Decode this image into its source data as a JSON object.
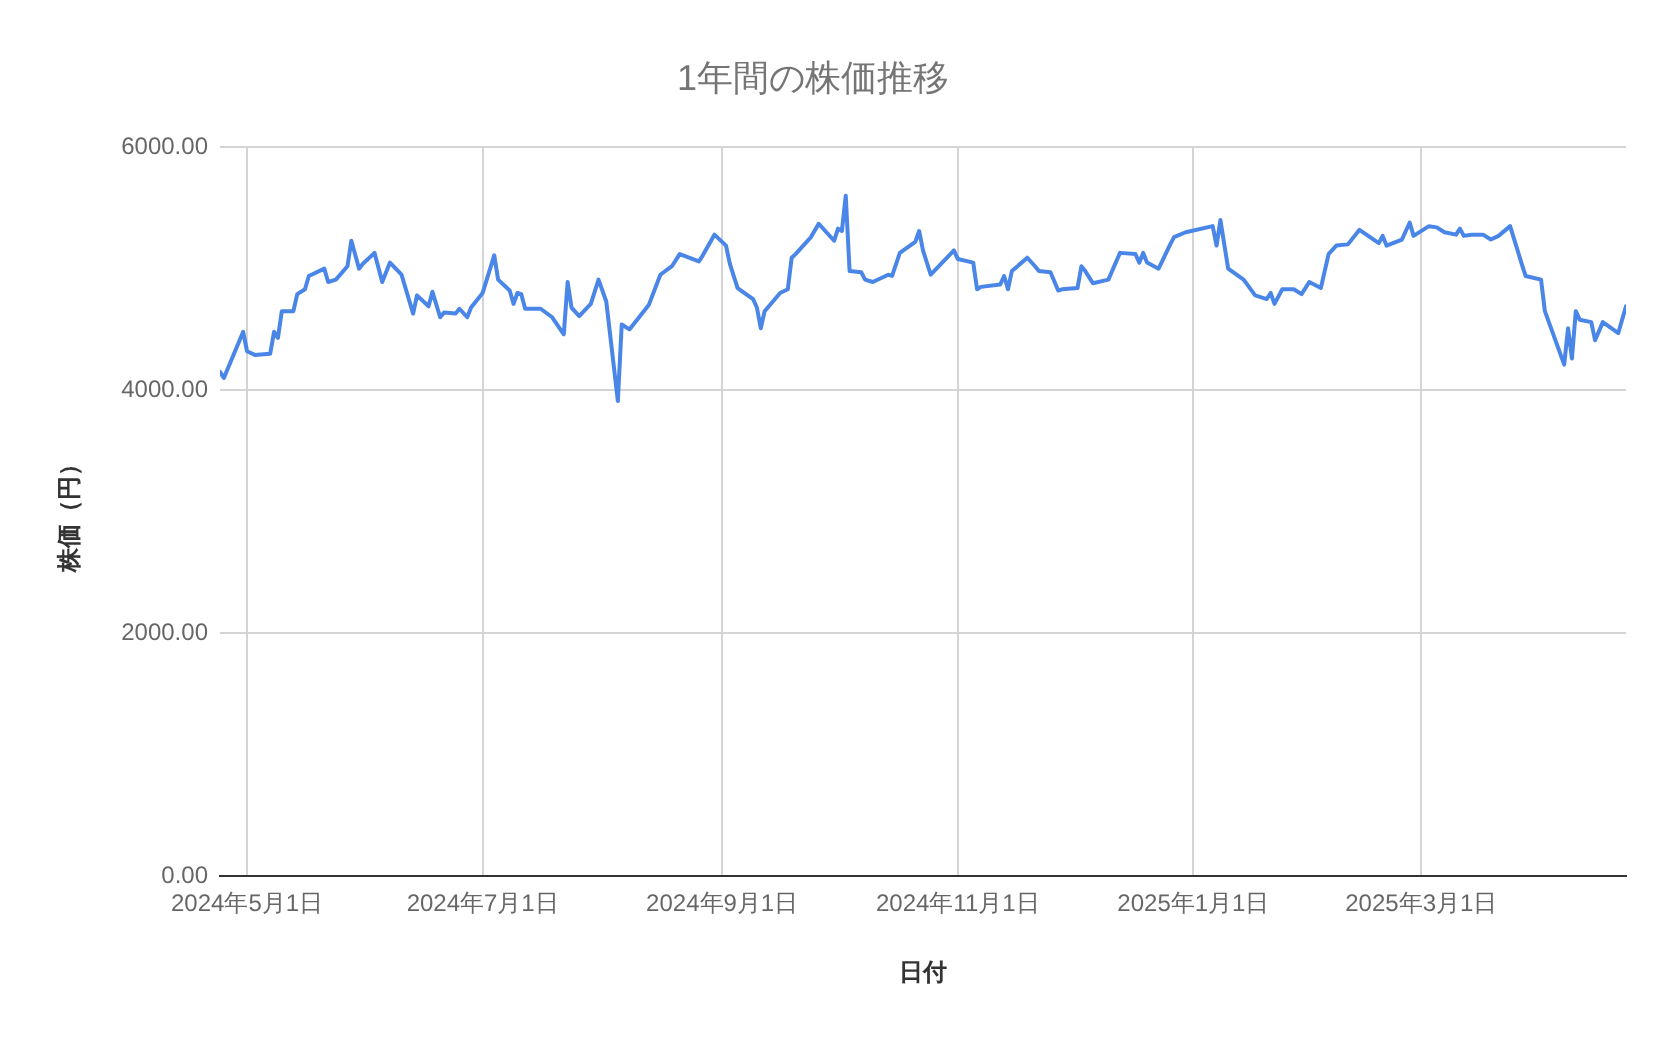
{
  "chart_data": {
    "type": "line",
    "title": "1年間の株価推移",
    "xlabel": "日付",
    "ylabel": "株価（円）",
    "x": [
      "2024-04-24",
      "2024-04-25",
      "2024-04-30",
      "2024-05-01",
      "2024-05-03",
      "2024-05-07",
      "2024-05-08",
      "2024-05-09",
      "2024-05-10",
      "2024-05-13",
      "2024-05-14",
      "2024-05-16",
      "2024-05-17",
      "2024-05-21",
      "2024-05-22",
      "2024-05-24",
      "2024-05-27",
      "2024-05-28",
      "2024-05-30",
      "2024-05-31",
      "2024-06-03",
      "2024-06-05",
      "2024-06-07",
      "2024-06-10",
      "2024-06-13",
      "2024-06-14",
      "2024-06-17",
      "2024-06-18",
      "2024-06-20",
      "2024-06-21",
      "2024-06-24",
      "2024-06-25",
      "2024-06-27",
      "2024-06-28",
      "2024-07-01",
      "2024-07-04",
      "2024-07-05",
      "2024-07-08",
      "2024-07-09",
      "2024-07-10",
      "2024-07-11",
      "2024-07-12",
      "2024-07-16",
      "2024-07-19",
      "2024-07-22",
      "2024-07-23",
      "2024-07-24",
      "2024-07-26",
      "2024-07-29",
      "2024-07-31",
      "2024-08-02",
      "2024-08-05",
      "2024-08-06",
      "2024-08-08",
      "2024-08-13",
      "2024-08-16",
      "2024-08-19",
      "2024-08-21",
      "2024-08-26",
      "2024-08-27",
      "2024-08-30",
      "2024-09-02",
      "2024-09-03",
      "2024-09-05",
      "2024-09-09",
      "2024-09-10",
      "2024-09-11",
      "2024-09-12",
      "2024-09-16",
      "2024-09-18",
      "2024-09-19",
      "2024-09-20",
      "2024-09-24",
      "2024-09-26",
      "2024-09-30",
      "2024-10-01",
      "2024-10-02",
      "2024-10-03",
      "2024-10-04",
      "2024-10-07",
      "2024-10-08",
      "2024-10-10",
      "2024-10-14",
      "2024-10-15",
      "2024-10-17",
      "2024-10-21",
      "2024-10-22",
      "2024-10-23",
      "2024-10-25",
      "2024-10-31",
      "2024-11-01",
      "2024-11-05",
      "2024-11-06",
      "2024-11-07",
      "2024-11-12",
      "2024-11-13",
      "2024-11-14",
      "2024-11-15",
      "2024-11-19",
      "2024-11-21",
      "2024-11-22",
      "2024-11-25",
      "2024-11-27",
      "2024-11-28",
      "2024-12-02",
      "2024-12-03",
      "2024-12-04",
      "2024-12-06",
      "2024-12-10",
      "2024-12-13",
      "2024-12-17",
      "2024-12-18",
      "2024-12-19",
      "2024-12-20",
      "2024-12-23",
      "2024-12-26",
      "2024-12-27",
      "2024-12-30",
      "2025-01-06",
      "2025-01-07",
      "2025-01-08",
      "2025-01-10",
      "2025-01-14",
      "2025-01-17",
      "2025-01-20",
      "2025-01-21",
      "2025-01-22",
      "2025-01-24",
      "2025-01-27",
      "2025-01-29",
      "2025-01-31",
      "2025-02-03",
      "2025-02-05",
      "2025-02-07",
      "2025-02-10",
      "2025-02-13",
      "2025-02-18",
      "2025-02-19",
      "2025-02-20",
      "2025-02-24",
      "2025-02-26",
      "2025-02-27",
      "2025-03-03",
      "2025-03-05",
      "2025-03-07",
      "2025-03-10",
      "2025-03-11",
      "2025-03-12",
      "2025-03-14",
      "2025-03-17",
      "2025-03-19",
      "2025-03-21",
      "2025-03-24",
      "2025-03-27",
      "2025-03-28",
      "2025-04-01",
      "2025-04-02",
      "2025-04-07",
      "2025-04-08",
      "2025-04-09",
      "2025-04-10",
      "2025-04-11",
      "2025-04-14",
      "2025-04-15",
      "2025-04-17",
      "2025-04-21",
      "2025-04-23"
    ],
    "values": [
      4150,
      4100,
      4480,
      4320,
      4290,
      4300,
      4480,
      4430,
      4650,
      4650,
      4790,
      4830,
      4940,
      5000,
      4890,
      4910,
      5020,
      5230,
      5000,
      5040,
      5130,
      4890,
      5050,
      4950,
      4630,
      4780,
      4690,
      4810,
      4600,
      4640,
      4630,
      4670,
      4600,
      4680,
      4800,
      5110,
      4910,
      4820,
      4710,
      4800,
      4790,
      4670,
      4670,
      4600,
      4460,
      4890,
      4680,
      4610,
      4710,
      4910,
      4730,
      3910,
      4540,
      4500,
      4700,
      4950,
      5020,
      5120,
      5060,
      5110,
      5280,
      5190,
      5040,
      4840,
      4750,
      4680,
      4510,
      4650,
      4800,
      4830,
      5090,
      5120,
      5260,
      5370,
      5230,
      5330,
      5310,
      5600,
      4980,
      4970,
      4910,
      4890,
      4950,
      4940,
      5130,
      5220,
      5310,
      5150,
      4950,
      5150,
      5080,
      5050,
      4830,
      4850,
      4870,
      4940,
      4830,
      4980,
      5090,
      5020,
      4980,
      4970,
      4820,
      4830,
      4840,
      5020,
      4980,
      4880,
      4910,
      5130,
      5120,
      5050,
      5130,
      5050,
      5000,
      5200,
      5260,
      5300,
      5350,
      5190,
      5400,
      5000,
      4910,
      4780,
      4750,
      4800,
      4710,
      4830,
      4830,
      4790,
      4890,
      4840,
      5120,
      5190,
      5200,
      5320,
      5210,
      5270,
      5190,
      5240,
      5380,
      5270,
      5350,
      5340,
      5300,
      5280,
      5330,
      5270,
      5280,
      5280,
      5240,
      5270,
      5350,
      5040,
      4940,
      4910,
      4650,
      4210,
      4510,
      4260,
      4650,
      4580,
      4560,
      4410,
      4560,
      4470,
      4690
    ],
    "color": "#4a86e8",
    "marker": "none",
    "line_style": "solid",
    "xlim": [
      "2024-04-24",
      "2025-04-23"
    ],
    "xticks": [
      {
        "value": "2024-05-01",
        "label": "2024年5月1日"
      },
      {
        "value": "2024-07-01",
        "label": "2024年7月1日"
      },
      {
        "value": "2024-09-01",
        "label": "2024年9月1日"
      },
      {
        "value": "2024-11-01",
        "label": "2024年11月1日"
      },
      {
        "value": "2025-01-01",
        "label": "2025年1月1日"
      },
      {
        "value": "2025-03-01",
        "label": "2025年3月1日"
      }
    ],
    "ylim": [
      0,
      6000
    ],
    "yticks": [
      {
        "value": 0,
        "label": "0.00"
      },
      {
        "value": 2000,
        "label": "2000.00"
      },
      {
        "value": 4000,
        "label": "4000.00"
      },
      {
        "value": 6000,
        "label": "6000.00"
      }
    ],
    "grid": true
  }
}
